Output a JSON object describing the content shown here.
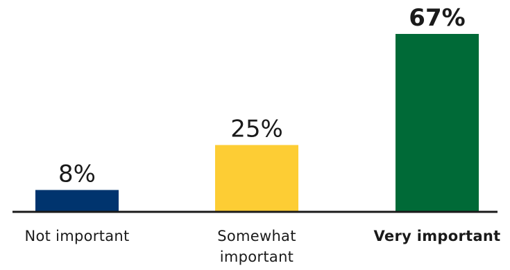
{
  "chart_data": {
    "type": "bar",
    "categories": [
      "Not important",
      "Somewhat important",
      "Very important"
    ],
    "category_lines": [
      [
        "Not important"
      ],
      [
        "Somewhat",
        "important"
      ],
      [
        "Very important"
      ]
    ],
    "values": [
      8,
      25,
      67
    ],
    "value_labels": [
      "8%",
      "25%",
      "67%"
    ],
    "colors": [
      "#00346e",
      "#fdcd34",
      "#006a37"
    ],
    "emphasized": [
      false,
      false,
      true
    ],
    "ylim": [
      0,
      67
    ],
    "grid": false,
    "legend": "none",
    "title": "",
    "xlabel": "",
    "ylabel": ""
  }
}
